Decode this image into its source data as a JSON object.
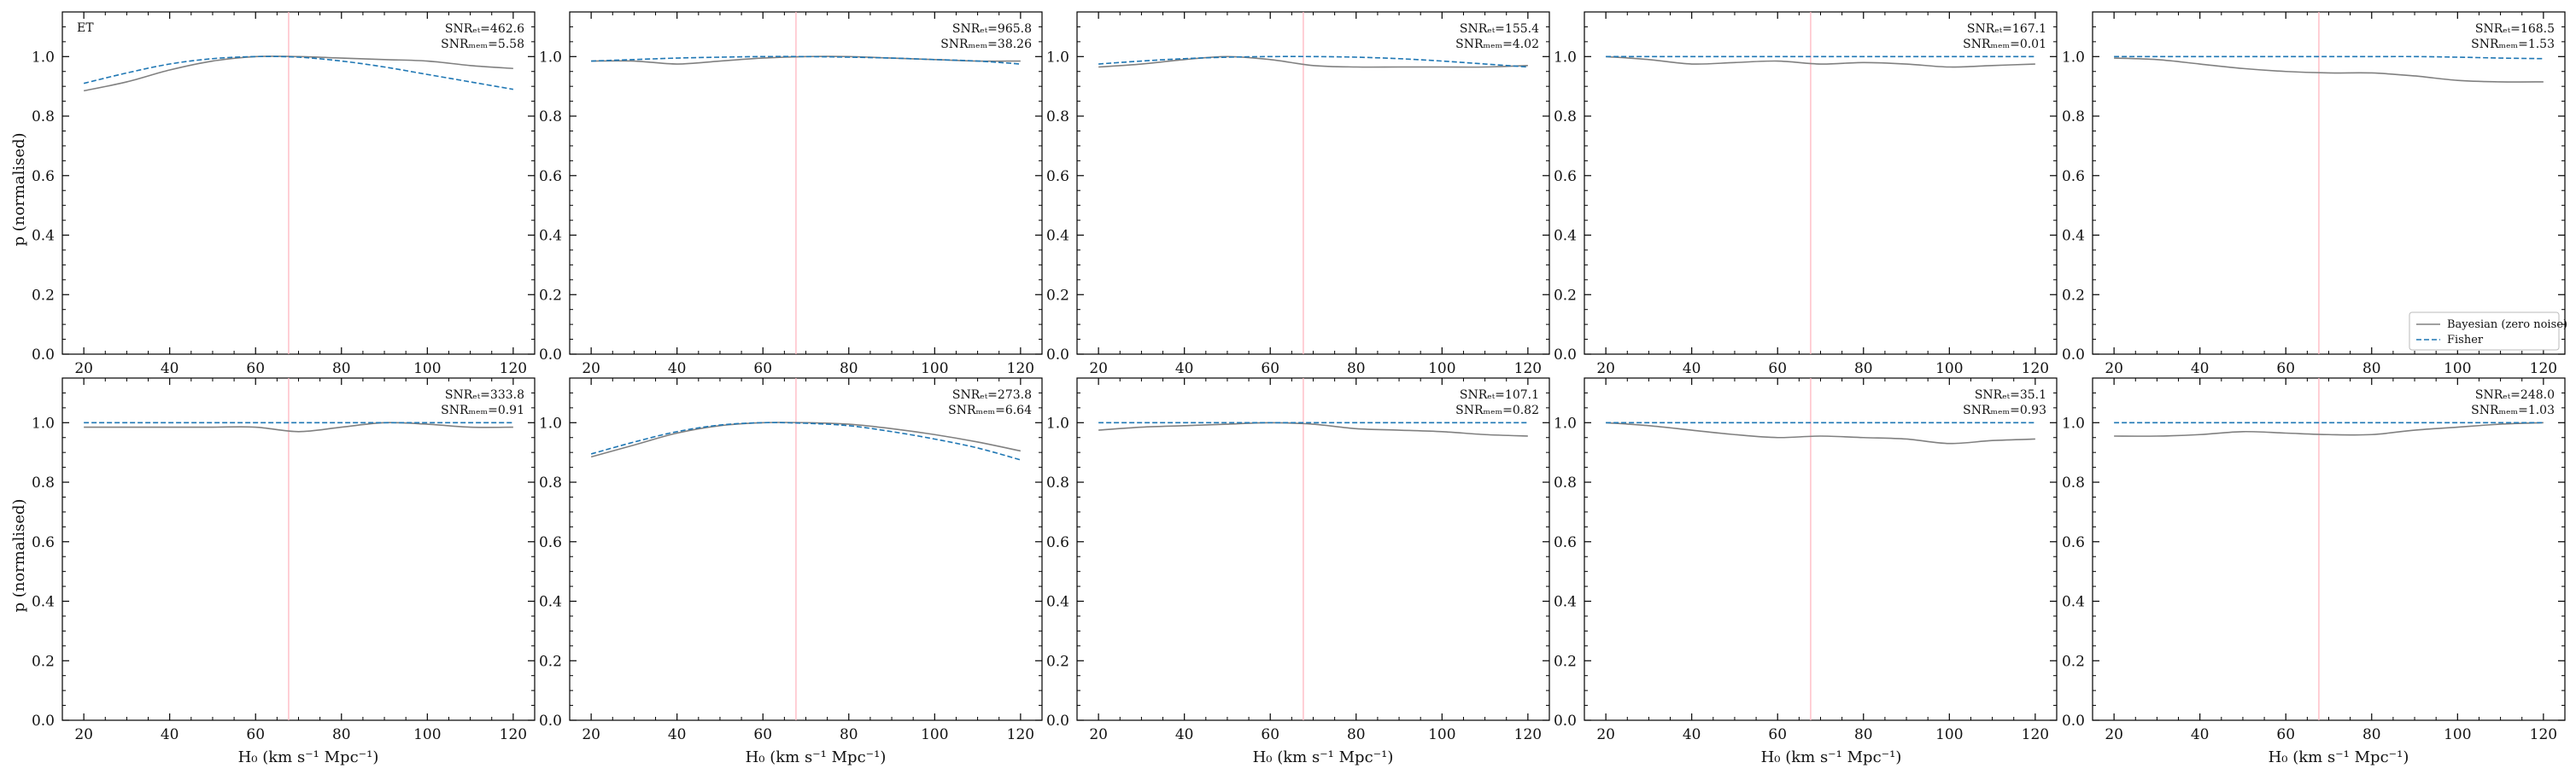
{
  "figure": {
    "ylabel": "p (normalised)",
    "xlabel": "H₀ (km s⁻¹ Mpc⁻¹)",
    "detector_label": "ET",
    "legend": {
      "placement": "lower-right",
      "bayesian": "Bayesian (zero noise)",
      "fisher": "Fisher"
    },
    "colors": {
      "bayesian": "#808080",
      "fisher": "#1f77b4",
      "truth": "#ffb6c1"
    }
  },
  "chart_data": [
    {
      "type": "line",
      "panel": 1,
      "xlim": [
        15,
        125
      ],
      "ylim": [
        0,
        1.15
      ],
      "xticks": [
        20,
        40,
        60,
        80,
        100,
        120
      ],
      "yticks": [
        0.0,
        0.2,
        0.4,
        0.6,
        0.8,
        1.0
      ],
      "truth_x": 67.7,
      "snr_et": "SNRₑₜ=462.6",
      "snr_mem": "SNRₘₑₘ=5.58",
      "series": [
        {
          "name": "Bayesian (zero noise)",
          "x": [
            20,
            30,
            40,
            50,
            60,
            70,
            80,
            90,
            100,
            110,
            120
          ],
          "y": [
            0.885,
            0.915,
            0.955,
            0.985,
            1.0,
            1.0,
            0.995,
            0.99,
            0.985,
            0.97,
            0.96
          ]
        },
        {
          "name": "Fisher",
          "x": [
            20,
            30,
            40,
            50,
            60,
            70,
            80,
            90,
            100,
            110,
            120
          ],
          "y": [
            0.91,
            0.945,
            0.975,
            0.993,
            1.0,
            0.998,
            0.985,
            0.965,
            0.94,
            0.915,
            0.89
          ]
        }
      ]
    },
    {
      "type": "line",
      "panel": 2,
      "xlim": [
        15,
        125
      ],
      "ylim": [
        0,
        1.15
      ],
      "xticks": [
        20,
        40,
        60,
        80,
        100,
        120
      ],
      "yticks": [
        0.0,
        0.2,
        0.4,
        0.6,
        0.8,
        1.0
      ],
      "truth_x": 67.7,
      "snr_et": "SNRₑₜ=965.8",
      "snr_mem": "SNRₘₑₘ=38.26",
      "series": [
        {
          "name": "Bayesian (zero noise)",
          "x": [
            20,
            30,
            40,
            50,
            60,
            70,
            80,
            90,
            100,
            110,
            120
          ],
          "y": [
            0.985,
            0.985,
            0.975,
            0.985,
            0.995,
            1.0,
            1.0,
            0.995,
            0.99,
            0.985,
            0.985
          ]
        },
        {
          "name": "Fisher",
          "x": [
            20,
            30,
            40,
            50,
            60,
            70,
            80,
            90,
            100,
            110,
            120
          ],
          "y": [
            0.985,
            0.99,
            0.995,
            0.998,
            1.0,
            1.0,
            0.998,
            0.995,
            0.99,
            0.985,
            0.975
          ]
        }
      ]
    },
    {
      "type": "line",
      "panel": 3,
      "xlim": [
        15,
        125
      ],
      "ylim": [
        0,
        1.15
      ],
      "xticks": [
        20,
        40,
        60,
        80,
        100,
        120
      ],
      "yticks": [
        0.0,
        0.2,
        0.4,
        0.6,
        0.8,
        1.0
      ],
      "truth_x": 67.7,
      "snr_et": "SNRₑₜ=155.4",
      "snr_mem": "SNRₘₑₘ=4.02",
      "series": [
        {
          "name": "Bayesian (zero noise)",
          "x": [
            20,
            30,
            40,
            50,
            60,
            70,
            80,
            90,
            100,
            110,
            120
          ],
          "y": [
            0.965,
            0.975,
            0.99,
            1.0,
            0.99,
            0.97,
            0.965,
            0.965,
            0.965,
            0.965,
            0.97
          ]
        },
        {
          "name": "Fisher",
          "x": [
            20,
            30,
            40,
            50,
            60,
            70,
            80,
            90,
            100,
            110,
            120
          ],
          "y": [
            0.975,
            0.985,
            0.993,
            0.998,
            1.0,
            1.0,
            0.998,
            0.993,
            0.985,
            0.975,
            0.965
          ]
        }
      ]
    },
    {
      "type": "line",
      "panel": 4,
      "xlim": [
        15,
        125
      ],
      "ylim": [
        0,
        1.15
      ],
      "xticks": [
        20,
        40,
        60,
        80,
        100,
        120
      ],
      "yticks": [
        0.0,
        0.2,
        0.4,
        0.6,
        0.8,
        1.0
      ],
      "truth_x": 67.7,
      "snr_et": "SNRₑₜ=167.1",
      "snr_mem": "SNRₘₑₘ=0.01",
      "series": [
        {
          "name": "Bayesian (zero noise)",
          "x": [
            20,
            30,
            40,
            50,
            60,
            70,
            80,
            90,
            100,
            110,
            120
          ],
          "y": [
            1.0,
            0.99,
            0.975,
            0.98,
            0.985,
            0.975,
            0.98,
            0.975,
            0.965,
            0.97,
            0.975
          ]
        },
        {
          "name": "Fisher",
          "x": [
            20,
            30,
            40,
            50,
            60,
            70,
            80,
            90,
            100,
            110,
            120
          ],
          "y": [
            1.0,
            1.0,
            1.0,
            1.0,
            1.0,
            1.0,
            1.0,
            1.0,
            1.0,
            1.0,
            1.0
          ]
        }
      ]
    },
    {
      "type": "line",
      "panel": 5,
      "xlim": [
        15,
        125
      ],
      "ylim": [
        0,
        1.15
      ],
      "xticks": [
        20,
        40,
        60,
        80,
        100,
        120
      ],
      "yticks": [
        0.0,
        0.2,
        0.4,
        0.6,
        0.8,
        1.0
      ],
      "truth_x": 67.7,
      "snr_et": "SNRₑₜ=168.5",
      "snr_mem": "SNRₘₑₘ=1.53",
      "series": [
        {
          "name": "Bayesian (zero noise)",
          "x": [
            20,
            30,
            40,
            50,
            60,
            70,
            80,
            90,
            100,
            110,
            120
          ],
          "y": [
            0.995,
            0.99,
            0.975,
            0.96,
            0.95,
            0.945,
            0.945,
            0.935,
            0.92,
            0.915,
            0.915
          ]
        },
        {
          "name": "Fisher",
          "x": [
            20,
            30,
            40,
            50,
            60,
            70,
            80,
            90,
            100,
            110,
            120
          ],
          "y": [
            1.0,
            1.0,
            1.0,
            1.0,
            1.0,
            1.0,
            1.0,
            1.0,
            0.998,
            0.995,
            0.993
          ]
        }
      ]
    },
    {
      "type": "line",
      "panel": 6,
      "xlim": [
        15,
        125
      ],
      "ylim": [
        0,
        1.15
      ],
      "xticks": [
        20,
        40,
        60,
        80,
        100,
        120
      ],
      "yticks": [
        0.0,
        0.2,
        0.4,
        0.6,
        0.8,
        1.0
      ],
      "truth_x": 67.7,
      "snr_et": "SNRₑₜ=333.8",
      "snr_mem": "SNRₘₑₘ=0.91",
      "series": [
        {
          "name": "Bayesian (zero noise)",
          "x": [
            20,
            30,
            40,
            50,
            60,
            70,
            80,
            90,
            100,
            110,
            120
          ],
          "y": [
            0.985,
            0.985,
            0.985,
            0.985,
            0.985,
            0.97,
            0.985,
            1.0,
            0.995,
            0.985,
            0.985
          ]
        },
        {
          "name": "Fisher",
          "x": [
            20,
            30,
            40,
            50,
            60,
            70,
            80,
            90,
            100,
            110,
            120
          ],
          "y": [
            1.0,
            1.0,
            1.0,
            1.0,
            1.0,
            1.0,
            1.0,
            1.0,
            1.0,
            1.0,
            1.0
          ]
        }
      ]
    },
    {
      "type": "line",
      "panel": 7,
      "xlim": [
        15,
        125
      ],
      "ylim": [
        0,
        1.15
      ],
      "xticks": [
        20,
        40,
        60,
        80,
        100,
        120
      ],
      "yticks": [
        0.0,
        0.2,
        0.4,
        0.6,
        0.8,
        1.0
      ],
      "truth_x": 67.7,
      "snr_et": "SNRₑₜ=273.8",
      "snr_mem": "SNRₘₑₘ=6.64",
      "series": [
        {
          "name": "Bayesian (zero noise)",
          "x": [
            20,
            30,
            40,
            50,
            60,
            70,
            80,
            90,
            100,
            110,
            120
          ],
          "y": [
            0.885,
            0.925,
            0.965,
            0.99,
            1.0,
            1.0,
            0.995,
            0.98,
            0.96,
            0.935,
            0.905
          ]
        },
        {
          "name": "Fisher",
          "x": [
            20,
            30,
            40,
            50,
            60,
            70,
            80,
            90,
            100,
            110,
            120
          ],
          "y": [
            0.895,
            0.935,
            0.97,
            0.992,
            1.0,
            0.998,
            0.99,
            0.97,
            0.945,
            0.915,
            0.875
          ]
        }
      ]
    },
    {
      "type": "line",
      "panel": 8,
      "xlim": [
        15,
        125
      ],
      "ylim": [
        0,
        1.15
      ],
      "xticks": [
        20,
        40,
        60,
        80,
        100,
        120
      ],
      "yticks": [
        0.0,
        0.2,
        0.4,
        0.6,
        0.8,
        1.0
      ],
      "truth_x": 67.7,
      "snr_et": "SNRₑₜ=107.1",
      "snr_mem": "SNRₘₑₘ=0.82",
      "series": [
        {
          "name": "Bayesian (zero noise)",
          "x": [
            20,
            30,
            40,
            50,
            60,
            70,
            80,
            90,
            100,
            110,
            120
          ],
          "y": [
            0.975,
            0.985,
            0.99,
            0.995,
            1.0,
            0.995,
            0.98,
            0.975,
            0.97,
            0.96,
            0.955
          ]
        },
        {
          "name": "Fisher",
          "x": [
            20,
            30,
            40,
            50,
            60,
            70,
            80,
            90,
            100,
            110,
            120
          ],
          "y": [
            1.0,
            1.0,
            1.0,
            1.0,
            1.0,
            1.0,
            1.0,
            1.0,
            1.0,
            1.0,
            1.0
          ]
        }
      ]
    },
    {
      "type": "line",
      "panel": 9,
      "xlim": [
        15,
        125
      ],
      "ylim": [
        0,
        1.15
      ],
      "xticks": [
        20,
        40,
        60,
        80,
        100,
        120
      ],
      "yticks": [
        0.0,
        0.2,
        0.4,
        0.6,
        0.8,
        1.0
      ],
      "truth_x": 67.7,
      "snr_et": "SNRₑₜ=35.1",
      "snr_mem": "SNRₘₑₘ=0.93",
      "series": [
        {
          "name": "Bayesian (zero noise)",
          "x": [
            20,
            30,
            40,
            50,
            60,
            70,
            80,
            90,
            100,
            110,
            120
          ],
          "y": [
            1.0,
            0.99,
            0.975,
            0.96,
            0.95,
            0.955,
            0.95,
            0.945,
            0.93,
            0.94,
            0.945
          ]
        },
        {
          "name": "Fisher",
          "x": [
            20,
            30,
            40,
            50,
            60,
            70,
            80,
            90,
            100,
            110,
            120
          ],
          "y": [
            1.0,
            1.0,
            1.0,
            1.0,
            1.0,
            1.0,
            1.0,
            1.0,
            1.0,
            1.0,
            1.0
          ]
        }
      ]
    },
    {
      "type": "line",
      "panel": 10,
      "xlim": [
        15,
        125
      ],
      "ylim": [
        0,
        1.15
      ],
      "xticks": [
        20,
        40,
        60,
        80,
        100,
        120
      ],
      "yticks": [
        0.0,
        0.2,
        0.4,
        0.6,
        0.8,
        1.0
      ],
      "truth_x": 67.7,
      "snr_et": "SNRₑₜ=248.0",
      "snr_mem": "SNRₘₑₘ=1.03",
      "series": [
        {
          "name": "Bayesian (zero noise)",
          "x": [
            20,
            30,
            40,
            50,
            60,
            70,
            80,
            90,
            100,
            110,
            120
          ],
          "y": [
            0.955,
            0.955,
            0.96,
            0.97,
            0.965,
            0.96,
            0.96,
            0.975,
            0.985,
            0.995,
            1.0
          ]
        },
        {
          "name": "Fisher",
          "x": [
            20,
            30,
            40,
            50,
            60,
            70,
            80,
            90,
            100,
            110,
            120
          ],
          "y": [
            1.0,
            1.0,
            1.0,
            1.0,
            1.0,
            1.0,
            1.0,
            1.0,
            1.0,
            1.0,
            1.0
          ]
        }
      ]
    }
  ]
}
